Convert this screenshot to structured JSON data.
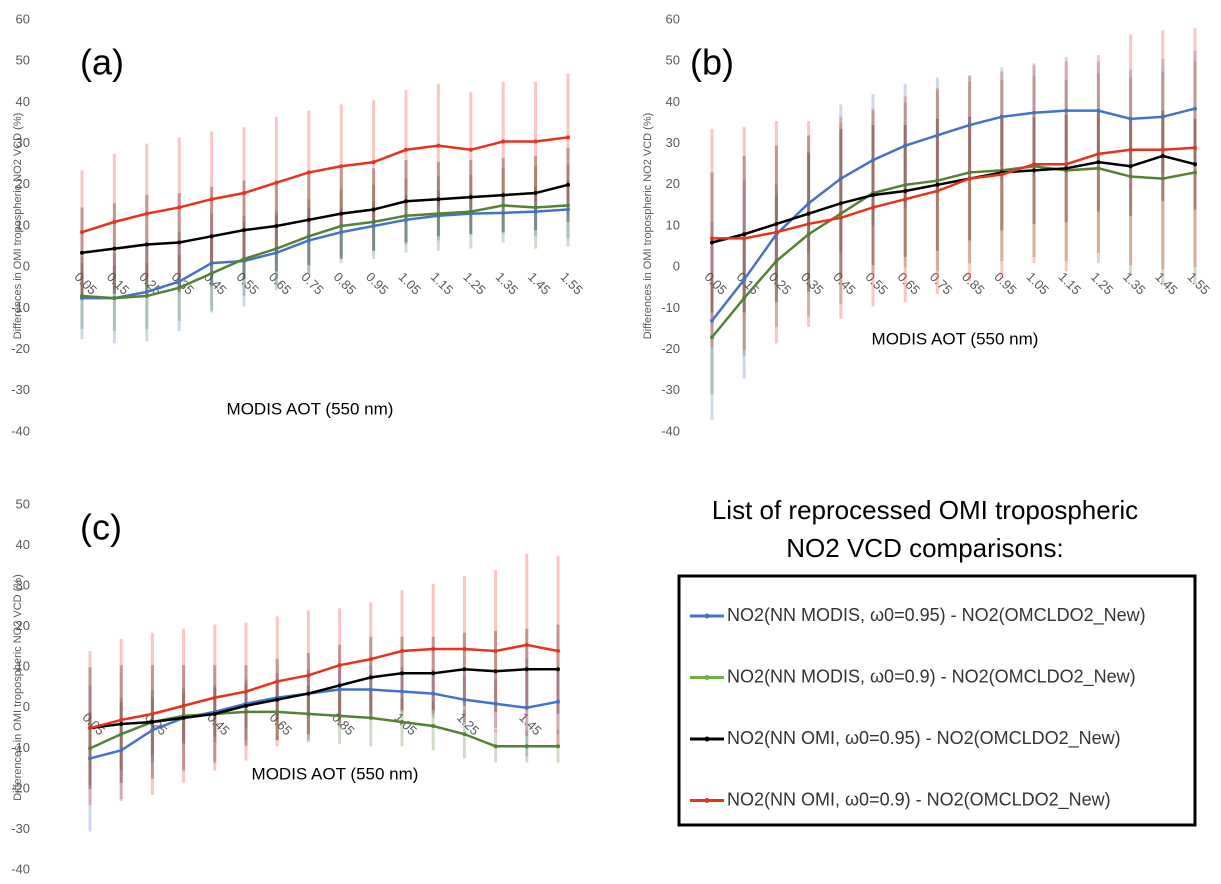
{
  "chart_data": [
    {
      "type": "line",
      "panel_label": "(a)",
      "ylabel": "Differences in OMI tropospheric NO2 VCD (%)",
      "xlabel": "MODIS AOT (550 nm)",
      "categories": [
        "0.05",
        "0.15",
        "0.25",
        "0.35",
        "0.45",
        "0.55",
        "0.65",
        "0.75",
        "0.85",
        "0.95",
        "1.05",
        "1.15",
        "1.25",
        "1.35",
        "1.45",
        "1.55"
      ],
      "ylim": [
        -40,
        60
      ],
      "yticks": [
        -40,
        -30,
        -20,
        -10,
        0,
        10,
        20,
        30,
        40,
        50,
        60
      ],
      "series": [
        {
          "color": "#4472c4",
          "values": [
            -7.5,
            -7.5,
            -6,
            -3.5,
            1,
            1.5,
            3.5,
            6.5,
            8.5,
            10,
            11.5,
            12.5,
            13,
            13.2,
            13.5,
            14
          ],
          "errors": [
            10,
            11,
            12,
            12,
            12,
            11,
            9,
            8,
            6,
            6,
            6,
            6,
            5,
            5,
            6,
            7
          ]
        },
        {
          "color": "#548235",
          "values": [
            -7,
            -7.5,
            -7,
            -5,
            -1.5,
            2,
            4.5,
            7.5,
            10,
            11,
            12.5,
            13,
            13.5,
            15,
            14.5,
            15
          ],
          "errors": [
            8,
            8,
            8,
            8,
            9,
            9,
            9,
            9,
            9,
            9,
            9,
            9,
            9,
            9,
            10,
            10
          ]
        },
        {
          "color": "#000000",
          "values": [
            3.5,
            4.5,
            5.5,
            6,
            7.5,
            9,
            10,
            11.5,
            13,
            14,
            16,
            16.5,
            17,
            17.5,
            18,
            20
          ],
          "errors": [
            11,
            11,
            12,
            12,
            12,
            12,
            11,
            11,
            11,
            10,
            10,
            9,
            9,
            9,
            9,
            9
          ]
        },
        {
          "color": "#e8321e",
          "values": [
            8.5,
            11,
            13,
            14.5,
            16.5,
            18,
            20.5,
            23,
            24.5,
            25.5,
            28.5,
            29.5,
            28.5,
            30.5,
            30.5,
            31.5
          ],
          "errors": [
            15,
            16.5,
            17,
            17,
            16.5,
            16,
            16,
            15,
            15,
            15,
            14.5,
            15,
            14,
            14.5,
            14.5,
            15.5
          ]
        }
      ]
    },
    {
      "type": "line",
      "panel_label": "(b)",
      "ylabel": "Differences in OMI tropospheric NO2 VCD (%)",
      "xlabel": "MODIS AOT (550 nm)",
      "categories": [
        "0.05",
        "0.15",
        "0.25",
        "0.35",
        "0.45",
        "0.55",
        "0.65",
        "0.75",
        "0.85",
        "0.95",
        "1.05",
        "1.15",
        "1.25",
        "1.35",
        "1.45",
        "1.55"
      ],
      "ylim": [
        -40,
        60
      ],
      "yticks": [
        -40,
        -30,
        -20,
        -10,
        0,
        10,
        20,
        30,
        40,
        50,
        60
      ],
      "series": [
        {
          "color": "#4472c4",
          "values": [
            -13,
            -3,
            8,
            15.5,
            21.5,
            26,
            29.5,
            32,
            34.5,
            36.5,
            37.5,
            38,
            38,
            36,
            36.5,
            38.5
          ],
          "errors": [
            24,
            24,
            12,
            12,
            18,
            16,
            15,
            14,
            12,
            12,
            12,
            12,
            12,
            12,
            14,
            14
          ]
        },
        {
          "color": "#548235",
          "values": [
            -17,
            -7.5,
            1.5,
            8,
            13,
            18,
            20,
            21,
            23,
            23.5,
            24.5,
            23.5,
            24,
            22,
            21.5,
            23
          ],
          "errors": [
            14,
            14,
            16,
            20,
            22,
            20,
            20,
            22,
            22,
            22,
            22,
            22,
            23,
            24,
            26,
            27
          ]
        },
        {
          "color": "#000000",
          "values": [
            6,
            8,
            10.5,
            13,
            15.5,
            17.5,
            18.5,
            20,
            21.5,
            23,
            23.5,
            24,
            25.5,
            24.5,
            27,
            25
          ],
          "errors": [
            17,
            19,
            19,
            19,
            18,
            17,
            16,
            16,
            15,
            14,
            13,
            13,
            12,
            12,
            11,
            11
          ]
        },
        {
          "color": "#e8321e",
          "values": [
            7,
            7,
            8.5,
            10.5,
            12,
            14.5,
            16.5,
            18.5,
            21.5,
            22.5,
            25,
            25,
            27.5,
            28.5,
            28.5,
            29
          ],
          "errors": [
            26.5,
            27,
            27,
            25,
            24.5,
            24,
            25,
            25,
            25,
            25,
            24,
            26,
            24,
            28,
            29,
            29
          ]
        }
      ]
    },
    {
      "type": "line",
      "panel_label": "(c)",
      "ylabel": "Differences in OMI tropospheric NO2 VCD (%)",
      "xlabel": "MODIS AOT (550 nm)",
      "categories": [
        "0.05",
        null,
        "0.25",
        null,
        "0.45",
        null,
        "0.65",
        null,
        "0.85",
        null,
        "1.05",
        null,
        "1.25",
        null,
        "1.45",
        null
      ],
      "ylim": [
        -40,
        50
      ],
      "yticks": [
        -40,
        -30,
        -20,
        -10,
        0,
        10,
        20,
        30,
        40,
        50
      ],
      "series": [
        {
          "color": "#4472c4",
          "values": [
            -12.5,
            -10.5,
            -5.5,
            -2.5,
            -1,
            1,
            2.5,
            3.5,
            4.5,
            4.5,
            4,
            3.5,
            2,
            1,
            0,
            1.5
          ],
          "errors": [
            18,
            12,
            8,
            6,
            6,
            6,
            6,
            6,
            6,
            6,
            6,
            6,
            6,
            6,
            12,
            8
          ]
        },
        {
          "color": "#548235",
          "values": [
            -10,
            -6.5,
            -3.5,
            -2,
            -1.5,
            -1,
            -1,
            -1.5,
            -2,
            -2.5,
            -3.5,
            -4.5,
            -6.5,
            -9.5,
            -9.5,
            -9.5
          ],
          "errors": [
            9,
            9,
            8,
            7,
            7,
            7,
            7,
            7,
            7,
            7,
            6,
            6,
            6,
            4,
            4,
            4
          ]
        },
        {
          "color": "#000000",
          "values": [
            -5,
            -4,
            -3.5,
            -2.5,
            -1.5,
            0.5,
            2,
            3.5,
            5.5,
            7.5,
            8.5,
            8.5,
            9.5,
            9,
            9.5,
            9.5
          ],
          "errors": [
            15,
            14.5,
            14,
            13,
            12,
            10,
            10,
            10,
            10,
            10,
            9,
            9,
            9,
            10,
            10,
            11
          ]
        },
        {
          "color": "#e8321e",
          "values": [
            -5,
            -3,
            -1.5,
            0.5,
            2.5,
            4,
            6.5,
            8,
            10.5,
            12,
            14,
            14.5,
            14.5,
            14,
            15.5,
            14
          ],
          "errors": [
            19,
            20,
            20,
            19,
            18,
            17,
            16,
            16,
            14,
            14,
            15,
            16,
            18,
            20,
            22.5,
            23.5
          ]
        }
      ]
    }
  ],
  "legend": {
    "title_lines": [
      "List of reprocessed OMI tropospheric",
      "NO2 VCD comparisons:"
    ],
    "entries": [
      {
        "name": "NO2(NN MODIS, ω0=0.95) - NO2(OMCLDO2_New)",
        "color": "#4472c4"
      },
      {
        "name": "NO2(NN MODIS, ω0=0.9) - NO2(OMCLDO2_New)",
        "color": "#70ad47"
      },
      {
        "name": "NO2(NN OMI, ω0=0.95) - NO2(OMCLDO2_New)",
        "color": "#000000"
      },
      {
        "name": "NO2(NN OMI, ω0=0.9) - NO2(OMCLDO2_New)",
        "color": "#e8321e"
      }
    ]
  }
}
